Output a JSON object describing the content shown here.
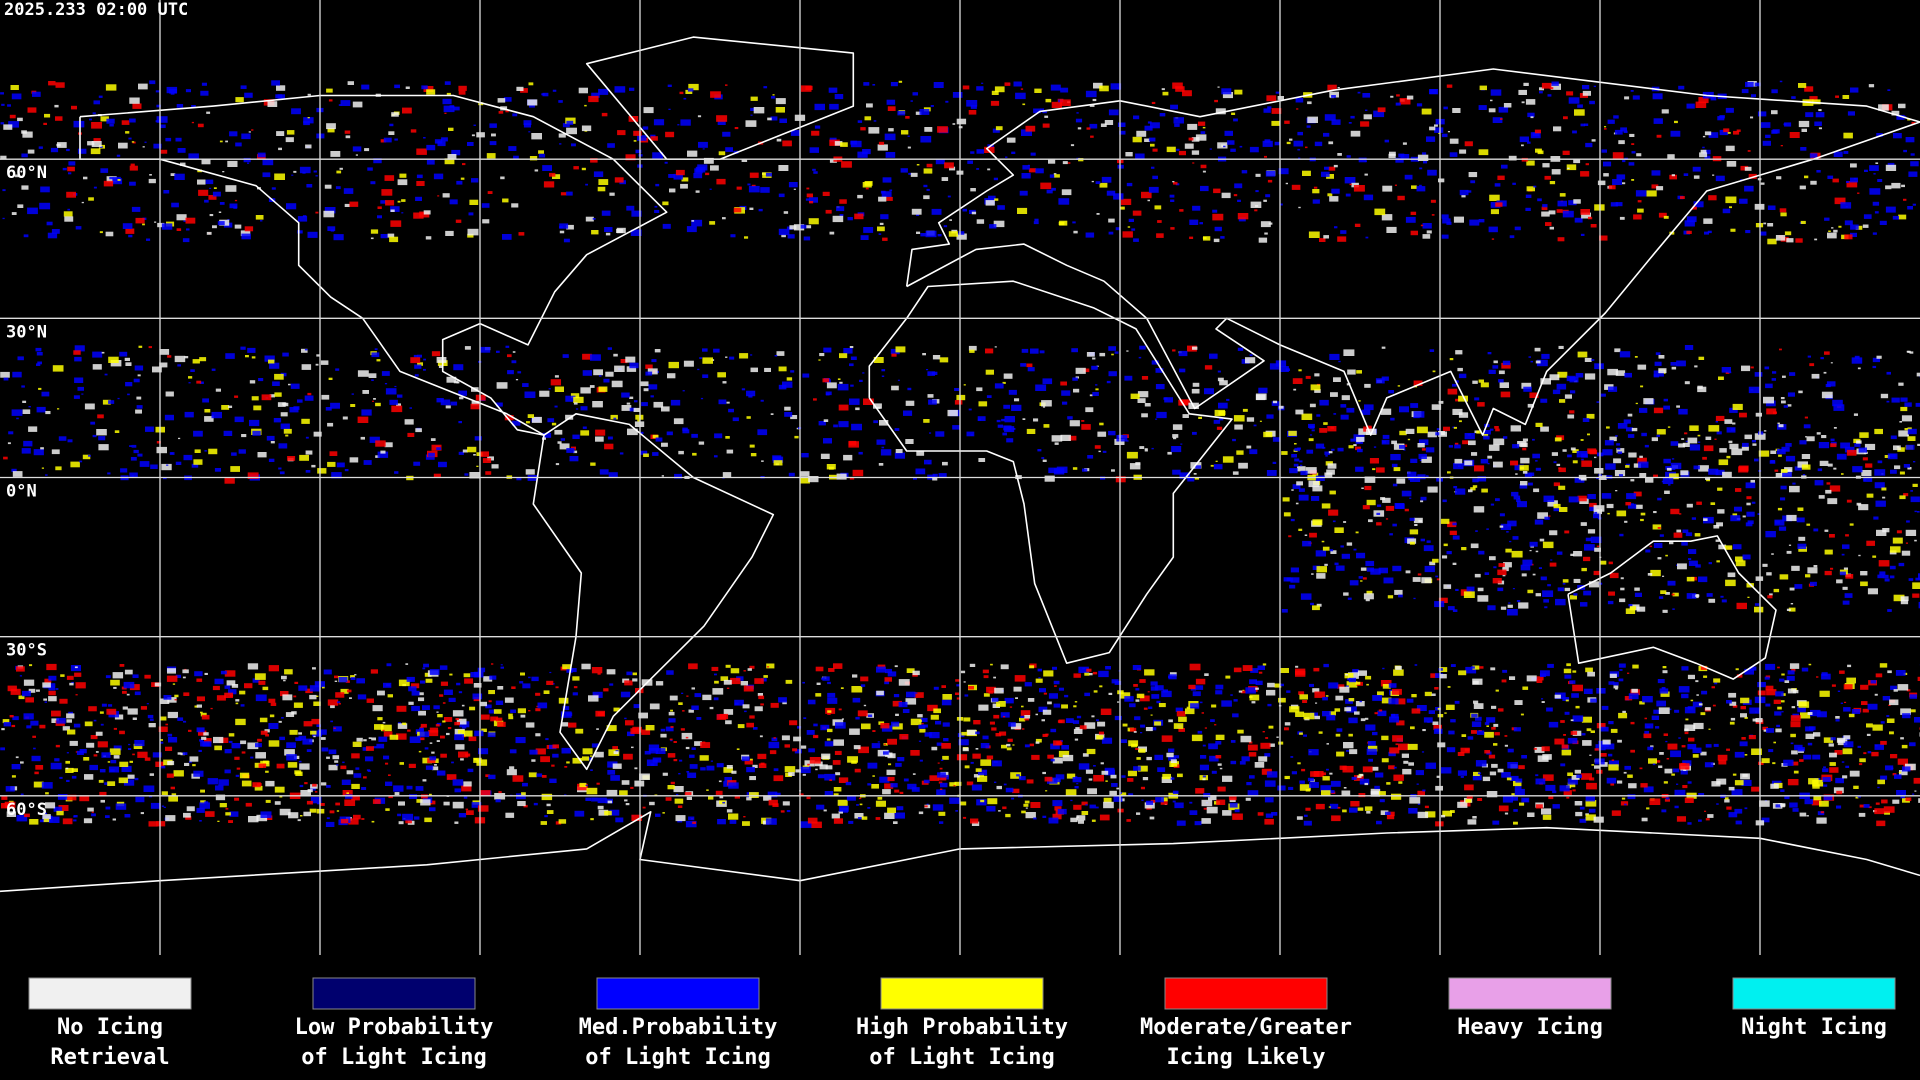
{
  "header": {
    "timestamp": "2025.233 02:00 UTC"
  },
  "latitude_labels": [
    "60°N",
    "30°N",
    "0°N",
    "30°S",
    "60°S"
  ],
  "legend": [
    {
      "lines": [
        "No Icing",
        "Retrieval"
      ],
      "color": "#f0f0f0"
    },
    {
      "lines": [
        "Low Probability",
        "of Light Icing"
      ],
      "color": "#00006e"
    },
    {
      "lines": [
        "Med.Probability",
        "of Light Icing"
      ],
      "color": "#0000ff"
    },
    {
      "lines": [
        "High Probability",
        "of Light Icing"
      ],
      "color": "#ffff00"
    },
    {
      "lines": [
        "Moderate/Greater",
        "Icing Likely"
      ],
      "color": "#ff0000"
    },
    {
      "lines": [
        "Heavy Icing"
      ],
      "color": "#e8a0e8"
    },
    {
      "lines": [
        "Night Icing"
      ],
      "color": "#00f0f0"
    }
  ]
}
